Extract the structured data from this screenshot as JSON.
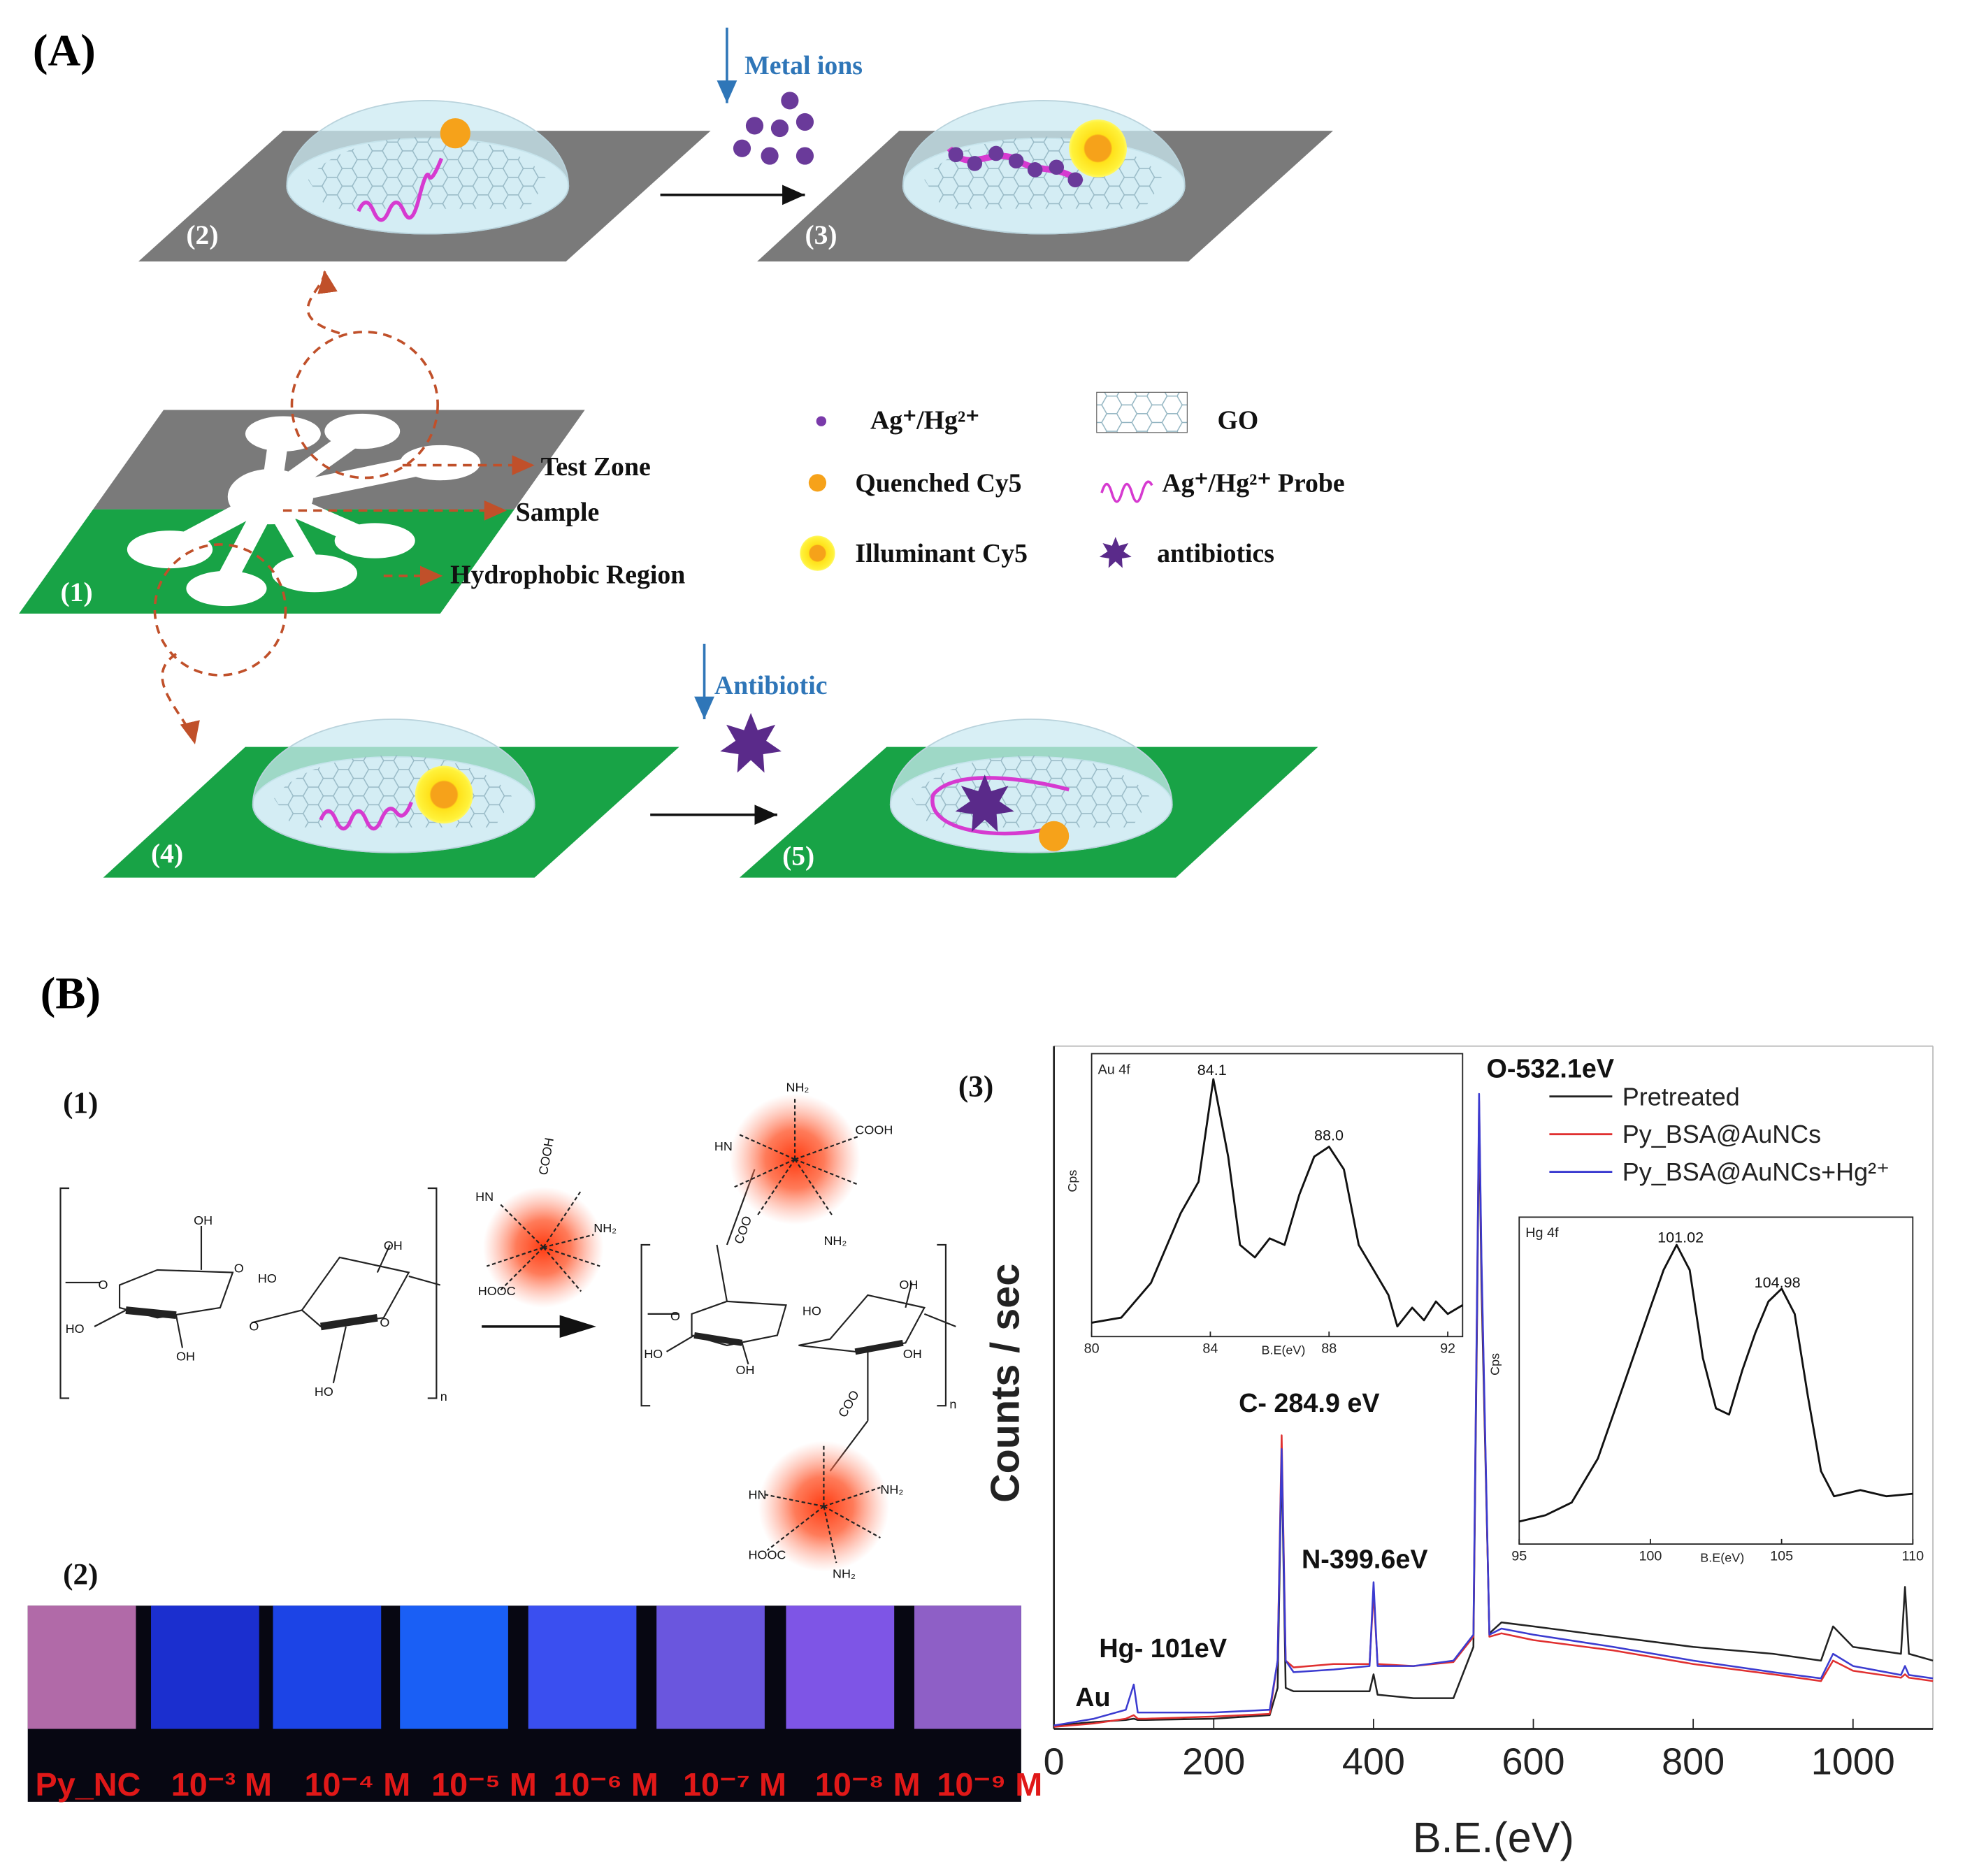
{
  "panel_a": {
    "label": "(A)",
    "steps": [
      "(1)",
      "(2)",
      "(3)",
      "(4)",
      "(5)"
    ],
    "reagents": [
      "Metal ions",
      "Antibiotic"
    ],
    "zones": [
      "Test Zone",
      "Sample",
      "Hydrophobic Region"
    ],
    "legend": [
      "Ag⁺/Hg²⁺",
      "GO",
      "Quenched Cy5",
      "Ag⁺/Hg²⁺ Probe",
      "Illuminant Cy5",
      "antibiotics"
    ]
  },
  "panel_b": {
    "label": "(B)",
    "parts": [
      "(1)",
      "(2)",
      "(3)"
    ],
    "molecule_labels": [
      "OH",
      "O",
      "O",
      "HO",
      "OH",
      "HO",
      "OH",
      "O",
      "O",
      "HO",
      "n",
      "OH",
      "HO",
      "OH",
      "HO",
      "OH",
      "O",
      "n",
      "COO",
      "COO"
    ],
    "cluster_labels": [
      "COOH",
      "NH₂",
      "HN",
      "HOOC",
      "COOH",
      "NH₂",
      "HN",
      "NH₂",
      "NH₂",
      "HN",
      "HOOC",
      "NH₂"
    ],
    "strip_labels": [
      "Py_NC",
      "10⁻³ M",
      "10⁻⁴ M",
      "10⁻⁵ M",
      "10⁻⁶ M",
      "10⁻⁷ M",
      "10⁻⁸ M",
      "10⁻⁹ M"
    ]
  },
  "chart_data": [
    {
      "type": "line",
      "xlabel": "B.E.(eV)",
      "ylabel": "Counts / sec",
      "x": [
        0,
        50,
        90,
        100,
        105,
        115,
        200,
        270,
        280,
        285,
        290,
        300,
        350,
        395,
        400,
        405,
        450,
        500,
        525,
        530,
        532,
        535,
        545,
        560,
        600,
        700,
        800,
        900,
        960,
        975,
        1000,
        1060,
        1065,
        1070,
        1100
      ],
      "xlim": [
        0,
        1100
      ],
      "xticks": [
        0,
        200,
        400,
        600,
        800,
        1000
      ],
      "ylim": [
        0,
        100
      ],
      "series": [
        {
          "name": "Pretreated",
          "color": "#222222",
          "values": [
            0.5,
            1,
            1.3,
            1.5,
            1.3,
            1.3,
            1.5,
            2,
            6,
            40,
            6,
            5.5,
            5.5,
            5.5,
            8,
            5,
            4.5,
            4.5,
            12,
            65,
            90,
            65,
            14,
            15.6,
            15,
            13.5,
            12,
            11,
            10,
            15,
            12,
            11,
            20.8,
            11,
            10
          ]
        },
        {
          "name": "Py_BSA@AuNCs",
          "color": "#e03030",
          "values": [
            0.3,
            0.8,
            1.5,
            2,
            1.5,
            1.5,
            1.8,
            2.2,
            10,
            43,
            10,
            9,
            9.5,
            9.5,
            20,
            9.5,
            9.2,
            9.8,
            13.5,
            68,
            92,
            68,
            13.5,
            14,
            13,
            11.5,
            9.5,
            8,
            7,
            10,
            8.5,
            7.5,
            8,
            7.5,
            7
          ]
        },
        {
          "name": "Py_BSA@AuNCs+Hg²⁺",
          "color": "#3b3bd0",
          "values": [
            0.5,
            1.5,
            2.8,
            6.5,
            2.4,
            2.4,
            2.4,
            2.8,
            10,
            41,
            10,
            8.3,
            8.7,
            9.2,
            21.5,
            9.2,
            9.2,
            10,
            13.8,
            69,
            93,
            69,
            13.8,
            14.7,
            13.8,
            12,
            10,
            8.3,
            7.4,
            11,
            9.2,
            7.9,
            9.2,
            7.9,
            7.4
          ]
        }
      ],
      "legend": "upper right",
      "annotations": [
        "O-532.1eV",
        "C- 284.9 eV",
        "N-399.6eV",
        "Hg- 101eV",
        "Au"
      ]
    },
    {
      "type": "line",
      "title": "Au 4f",
      "xlabel": "B.E(eV)",
      "ylabel": "Cps",
      "x": [
        80,
        81,
        82,
        83,
        83.6,
        84.1,
        84.6,
        85,
        85.5,
        86,
        86.5,
        87,
        87.5,
        88,
        88.5,
        89,
        89.5,
        90,
        90.3,
        90.8,
        91.2,
        91.6,
        92,
        92.5
      ],
      "xlim": [
        80,
        92.5
      ],
      "xticks": [
        80,
        84,
        88,
        92
      ],
      "ylim": [
        0,
        100
      ],
      "series": [
        {
          "color": "#111111",
          "values": [
            4.9,
            6.7,
            19,
            43.6,
            54.7,
            91,
            63.6,
            32.4,
            28,
            34.7,
            32.4,
            50.2,
            63.6,
            67.1,
            59.1,
            32.4,
            23.6,
            14.7,
            3.6,
            10.2,
            5.8,
            12.4,
            8,
            11.1
          ]
        }
      ],
      "annotations": [
        "84.1",
        "88.0"
      ]
    },
    {
      "type": "line",
      "title": "Hg 4f",
      "xlabel": "B.E(eV)",
      "ylabel": "Cps",
      "x": [
        95,
        96,
        97,
        98,
        99,
        100,
        100.5,
        101,
        101.5,
        102,
        102.5,
        103,
        103.5,
        104,
        104.5,
        105,
        105.5,
        106,
        106.5,
        107,
        108,
        109,
        110
      ],
      "xlim": [
        95,
        110
      ],
      "xticks": [
        95,
        100,
        105,
        110
      ],
      "ylim": [
        0,
        100
      ],
      "series": [
        {
          "color": "#111111",
          "values": [
            6.9,
            8.8,
            12.7,
            26.2,
            49.2,
            72.3,
            83.8,
            91.5,
            83.8,
            56.9,
            41.5,
            39.6,
            53.1,
            64.6,
            74.2,
            78.1,
            70.4,
            45.4,
            22.3,
            14.6,
            16.5,
            14.6,
            15.4
          ]
        }
      ],
      "annotations": [
        "101.02",
        "104.98"
      ]
    }
  ]
}
